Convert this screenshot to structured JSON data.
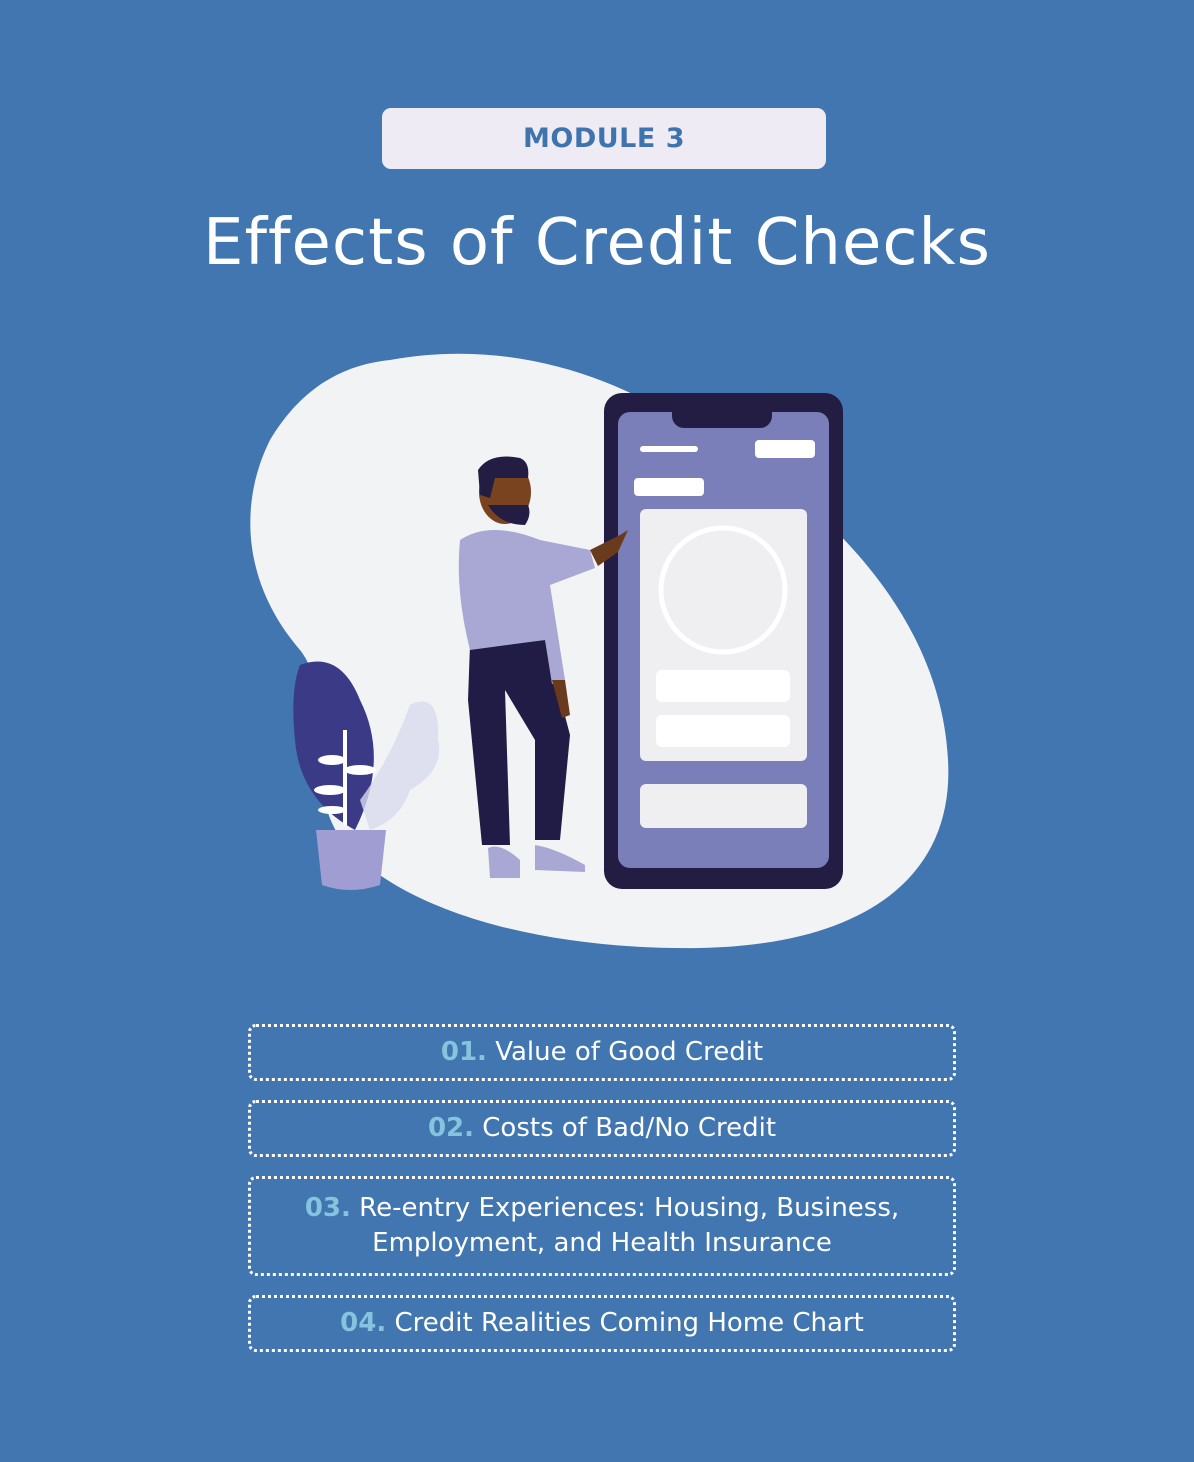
{
  "badge": "MODULE 3",
  "title": "Effects of Credit Checks",
  "colors": {
    "background": "#4176b0",
    "badge_bg": "#eeebf5",
    "number_accent": "#86c4dd"
  },
  "items": [
    {
      "num": "01.",
      "text": "Value of Good Credit"
    },
    {
      "num": "02.",
      "text": "Costs of Bad/No Credit"
    },
    {
      "num": "03.",
      "text": "Re-entry Experiences: Housing, Business, Employment, and Health Insurance"
    },
    {
      "num": "04.",
      "text": "Credit Realities Coming Home Chart"
    }
  ]
}
